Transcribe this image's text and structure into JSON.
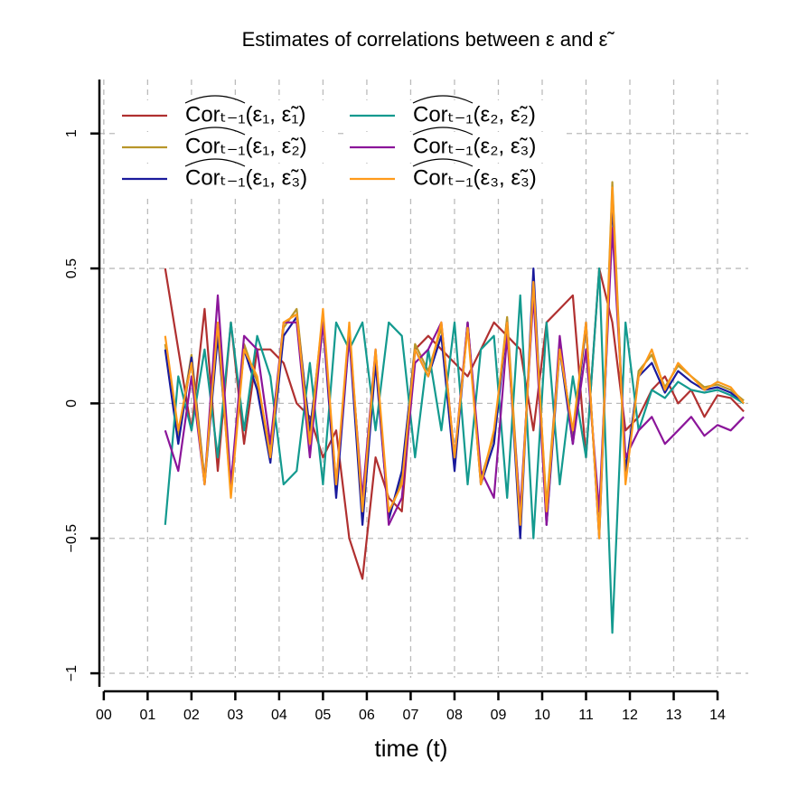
{
  "chart_data": {
    "type": "line",
    "title": "Estimates of correlations between ε and ε̃",
    "x_label": "time (t)",
    "x": [
      1.4,
      1.7,
      2.0,
      2.3,
      2.6,
      2.9,
      3.2,
      3.5,
      3.8,
      4.1,
      4.4,
      4.7,
      5.0,
      5.3,
      5.6,
      5.9,
      6.2,
      6.5,
      6.8,
      7.1,
      7.4,
      7.7,
      8.0,
      8.3,
      8.6,
      8.9,
      9.2,
      9.5,
      9.8,
      10.1,
      10.4,
      10.7,
      11.0,
      11.3,
      11.6,
      11.9,
      12.2,
      12.5,
      12.8,
      13.1,
      13.4,
      13.7,
      14.0,
      14.3,
      14.6
    ],
    "series": [
      {
        "name": "Corₜ₋₁(ε₁, ε̃₁)",
        "color": "#b03030",
        "values": [
          0.5,
          0.2,
          -0.1,
          0.35,
          -0.25,
          0.3,
          -0.15,
          0.2,
          0.2,
          0.15,
          0.0,
          -0.05,
          -0.2,
          -0.1,
          -0.5,
          -0.65,
          -0.2,
          -0.35,
          -0.4,
          0.2,
          0.25,
          0.2,
          0.15,
          0.1,
          0.2,
          0.3,
          0.25,
          0.2,
          -0.1,
          0.3,
          0.35,
          0.4,
          -0.2,
          0.5,
          0.3,
          -0.1,
          -0.05,
          0.05,
          0.1,
          0.0,
          0.05,
          -0.05,
          0.03,
          0.02,
          -0.03
        ]
      },
      {
        "name": "Corₜ₋₁(ε₁, ε̃₂)",
        "color": "#b8962a",
        "values": [
          0.22,
          -0.12,
          0.18,
          -0.28,
          0.27,
          -0.33,
          0.22,
          0.08,
          -0.18,
          0.28,
          0.35,
          -0.12,
          0.33,
          -0.32,
          0.28,
          -0.38,
          0.18,
          -0.42,
          -0.28,
          0.22,
          0.12,
          0.28,
          -0.22,
          0.3,
          -0.28,
          -0.12,
          0.32,
          -0.42,
          0.42,
          -0.38,
          0.22,
          -0.12,
          0.28,
          -0.48,
          0.82,
          -0.28,
          0.12,
          0.18,
          0.06,
          0.14,
          0.1,
          0.06,
          0.07,
          0.05,
          0.01
        ]
      },
      {
        "name": "Corₜ₋₁(ε₁, ε̃₃)",
        "color": "#1a1a9c",
        "values": [
          0.2,
          -0.15,
          0.17,
          -0.3,
          0.25,
          -0.3,
          0.2,
          0.05,
          -0.22,
          0.25,
          0.32,
          -0.1,
          0.3,
          -0.35,
          0.25,
          -0.45,
          0.15,
          -0.43,
          -0.25,
          0.2,
          0.1,
          0.25,
          -0.25,
          0.3,
          -0.3,
          -0.15,
          0.3,
          -0.5,
          0.5,
          -0.45,
          0.2,
          -0.15,
          0.3,
          -0.5,
          0.75,
          -0.25,
          0.1,
          0.15,
          0.04,
          0.12,
          0.08,
          0.05,
          0.06,
          0.04,
          0.0
        ]
      },
      {
        "name": "Corₜ₋₁(ε₂, ε̃₂)",
        "color": "#139a8f",
        "values": [
          -0.45,
          0.1,
          -0.1,
          0.2,
          -0.2,
          0.3,
          -0.1,
          0.25,
          0.1,
          -0.3,
          -0.25,
          0.15,
          -0.3,
          0.3,
          0.2,
          0.3,
          -0.1,
          0.3,
          0.25,
          -0.2,
          0.2,
          -0.1,
          0.3,
          -0.3,
          0.2,
          0.25,
          -0.35,
          0.4,
          -0.5,
          0.3,
          -0.3,
          0.1,
          -0.2,
          0.5,
          -0.85,
          0.3,
          -0.1,
          0.05,
          0.02,
          0.08,
          0.05,
          0.04,
          0.05,
          0.03,
          0.0
        ]
      },
      {
        "name": "Corₜ₋₁(ε₂, ε̃₃)",
        "color": "#8b159a",
        "values": [
          -0.1,
          -0.25,
          0.1,
          -0.3,
          0.4,
          -0.3,
          0.25,
          0.2,
          -0.15,
          0.3,
          0.3,
          -0.2,
          0.3,
          -0.3,
          0.25,
          -0.35,
          0.2,
          -0.45,
          -0.35,
          0.15,
          0.2,
          0.3,
          -0.2,
          0.3,
          -0.25,
          -0.35,
          0.25,
          -0.4,
          0.4,
          -0.45,
          0.25,
          -0.15,
          0.2,
          -0.4,
          0.65,
          -0.2,
          -0.1,
          -0.05,
          -0.15,
          -0.1,
          -0.05,
          -0.12,
          -0.08,
          -0.1,
          -0.05
        ]
      },
      {
        "name": "Corₜ₋₁(ε₃, ε̃₃)",
        "color": "#ff9a1a",
        "values": [
          0.25,
          -0.1,
          0.15,
          -0.3,
          0.3,
          -0.35,
          0.2,
          0.1,
          -0.2,
          0.3,
          0.33,
          -0.15,
          0.35,
          -0.3,
          0.3,
          -0.4,
          0.2,
          -0.4,
          -0.3,
          0.2,
          0.1,
          0.3,
          -0.2,
          0.28,
          -0.3,
          -0.1,
          0.3,
          -0.45,
          0.45,
          -0.4,
          0.2,
          -0.1,
          0.3,
          -0.5,
          0.8,
          -0.3,
          0.1,
          0.2,
          0.05,
          0.15,
          0.1,
          0.05,
          0.08,
          0.06,
          0.0
        ]
      }
    ],
    "xlim": [
      -0.1,
      14.7
    ],
    "ylim": [
      -1.05,
      1.2
    ],
    "xticks": [
      {
        "value": 0,
        "label": "00"
      },
      {
        "value": 1,
        "label": "01"
      },
      {
        "value": 2,
        "label": "02"
      },
      {
        "value": 3,
        "label": "03"
      },
      {
        "value": 4,
        "label": "04"
      },
      {
        "value": 5,
        "label": "05"
      },
      {
        "value": 6,
        "label": "06"
      },
      {
        "value": 7,
        "label": "07"
      },
      {
        "value": 8,
        "label": "08"
      },
      {
        "value": 9,
        "label": "09"
      },
      {
        "value": 10,
        "label": "10"
      },
      {
        "value": 11,
        "label": "11"
      },
      {
        "value": 12,
        "label": "12"
      },
      {
        "value": 13,
        "label": "13"
      },
      {
        "value": 14,
        "label": "14"
      }
    ],
    "yticks": [
      {
        "value": -1,
        "label": "−1"
      },
      {
        "value": -0.5,
        "label": "−0.5"
      },
      0,
      0.5,
      1
    ],
    "grid": true,
    "legend": "top-left"
  }
}
